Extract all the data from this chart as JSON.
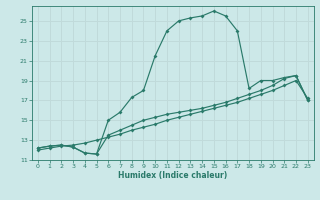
{
  "xlabel": "Humidex (Indice chaleur)",
  "bg_color": "#cce8e8",
  "grid_color": "#c0dada",
  "line_color": "#2a7a6a",
  "xlim": [
    -0.5,
    23.5
  ],
  "ylim": [
    11,
    26.5
  ],
  "xticks": [
    0,
    1,
    2,
    3,
    4,
    5,
    6,
    7,
    8,
    9,
    10,
    11,
    12,
    13,
    14,
    15,
    16,
    17,
    18,
    19,
    20,
    21,
    22,
    23
  ],
  "yticks": [
    11,
    13,
    15,
    17,
    19,
    21,
    23,
    25
  ],
  "line1_x": [
    0,
    1,
    2,
    3,
    4,
    5,
    6,
    7,
    8,
    9,
    10,
    11,
    12,
    13,
    14,
    15,
    16,
    17,
    18,
    19,
    20,
    21,
    22,
    23
  ],
  "line1_y": [
    12.0,
    12.2,
    12.4,
    12.5,
    12.7,
    13.0,
    13.3,
    13.6,
    14.0,
    14.3,
    14.6,
    15.0,
    15.3,
    15.6,
    15.9,
    16.2,
    16.5,
    16.8,
    17.2,
    17.6,
    18.0,
    18.5,
    19.0,
    17.2
  ],
  "line2_x": [
    0,
    1,
    2,
    3,
    4,
    5,
    6,
    7,
    8,
    9,
    10,
    11,
    12,
    13,
    14,
    15,
    16,
    17,
    18,
    19,
    20,
    21,
    22,
    23
  ],
  "line2_y": [
    12.2,
    12.4,
    12.5,
    12.3,
    11.7,
    11.6,
    13.5,
    14.0,
    14.5,
    15.0,
    15.3,
    15.6,
    15.8,
    16.0,
    16.2,
    16.5,
    16.8,
    17.2,
    17.6,
    18.0,
    18.5,
    19.2,
    19.5,
    17.0
  ],
  "line3_x": [
    0,
    1,
    2,
    3,
    4,
    5,
    6,
    7,
    8,
    9,
    10,
    11,
    12,
    13,
    14,
    15,
    16,
    17,
    18,
    19,
    20,
    21,
    22,
    23
  ],
  "line3_y": [
    12.2,
    12.4,
    12.5,
    12.3,
    11.7,
    11.6,
    15.0,
    15.8,
    17.3,
    18.0,
    21.5,
    24.0,
    25.0,
    25.3,
    25.5,
    26.0,
    25.5,
    24.0,
    18.2,
    19.0,
    19.0,
    19.3,
    19.5,
    17.0
  ]
}
